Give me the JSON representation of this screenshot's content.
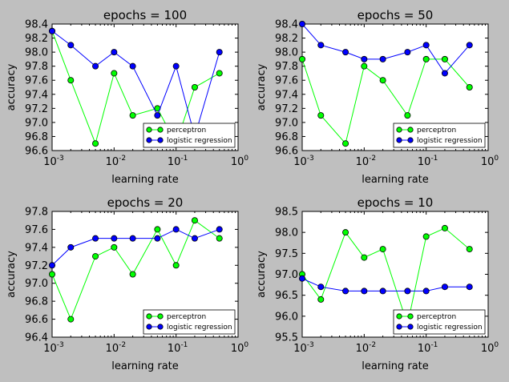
{
  "chart_data": [
    {
      "type": "line",
      "title": "epochs = 100",
      "xlabel": "learning rate",
      "ylabel": "accuracy",
      "xscale": "log",
      "xlim": [
        0.001,
        1
      ],
      "ylim": [
        96.6,
        98.4
      ],
      "x_tick_labels": [
        "10^-3",
        "10^-2",
        "10^-1",
        "10^0"
      ],
      "y_tick_labels": [
        "96.6",
        "96.8",
        "97.0",
        "97.2",
        "97.4",
        "97.6",
        "97.8",
        "98.0",
        "98.2",
        "98.4"
      ],
      "legend": "lower-right",
      "x": [
        0.001,
        0.002,
        0.005,
        0.01,
        0.02,
        0.05,
        0.1,
        0.2,
        0.5
      ],
      "series": [
        {
          "name": "perceptron",
          "color": "#00ff00",
          "values": [
            98.3,
            97.6,
            96.7,
            97.7,
            97.1,
            97.2,
            96.7,
            97.5,
            97.7
          ]
        },
        {
          "name": "logistic regression",
          "color": "#0000ff",
          "values": [
            98.3,
            98.1,
            97.8,
            98.0,
            97.8,
            97.1,
            97.8,
            96.8,
            98.0
          ]
        }
      ]
    },
    {
      "type": "line",
      "title": "epochs = 50",
      "xlabel": "learning rate",
      "ylabel": "accuracy",
      "xscale": "log",
      "xlim": [
        0.001,
        1
      ],
      "ylim": [
        96.6,
        98.4
      ],
      "x_tick_labels": [
        "10^-3",
        "10^-2",
        "10^-1",
        "10^0"
      ],
      "y_tick_labels": [
        "96.6",
        "96.8",
        "97.0",
        "97.2",
        "97.4",
        "97.6",
        "97.8",
        "98.0",
        "98.2",
        "98.4"
      ],
      "legend": "lower-right",
      "x": [
        0.001,
        0.002,
        0.005,
        0.01,
        0.02,
        0.05,
        0.1,
        0.2,
        0.5
      ],
      "series": [
        {
          "name": "perceptron",
          "color": "#00ff00",
          "values": [
            97.9,
            97.1,
            96.7,
            97.8,
            97.6,
            97.1,
            97.9,
            97.9,
            97.5
          ]
        },
        {
          "name": "logistic regression",
          "color": "#0000ff",
          "values": [
            98.4,
            98.1,
            98.0,
            97.9,
            97.9,
            98.0,
            98.1,
            97.7,
            98.1
          ]
        }
      ]
    },
    {
      "type": "line",
      "title": "epochs = 20",
      "xlabel": "learning rate",
      "ylabel": "accuracy",
      "xscale": "log",
      "xlim": [
        0.001,
        1
      ],
      "ylim": [
        96.4,
        97.8
      ],
      "x_tick_labels": [
        "10^-3",
        "10^-2",
        "10^-1",
        "10^0"
      ],
      "y_tick_labels": [
        "96.4",
        "96.6",
        "96.8",
        "97.0",
        "97.2",
        "97.4",
        "97.6",
        "97.8"
      ],
      "legend": "lower-right",
      "x": [
        0.001,
        0.002,
        0.005,
        0.01,
        0.02,
        0.05,
        0.1,
        0.2,
        0.5
      ],
      "series": [
        {
          "name": "perceptron",
          "color": "#00ff00",
          "values": [
            97.1,
            96.6,
            97.3,
            97.4,
            97.1,
            97.6,
            97.2,
            97.7,
            97.5
          ]
        },
        {
          "name": "logistic regression",
          "color": "#0000ff",
          "values": [
            97.2,
            97.4,
            97.5,
            97.5,
            97.5,
            97.5,
            97.6,
            97.5,
            97.6
          ]
        }
      ]
    },
    {
      "type": "line",
      "title": "epochs = 10",
      "xlabel": "learning rate",
      "ylabel": "accuracy",
      "xscale": "log",
      "xlim": [
        0.001,
        1
      ],
      "ylim": [
        95.5,
        98.5
      ],
      "x_tick_labels": [
        "10^-3",
        "10^-2",
        "10^-1",
        "10^0"
      ],
      "y_tick_labels": [
        "95.5",
        "96.0",
        "96.5",
        "97.0",
        "97.5",
        "98.0",
        "98.5"
      ],
      "legend": "lower-right",
      "x": [
        0.001,
        0.002,
        0.005,
        0.01,
        0.02,
        0.05,
        0.1,
        0.2,
        0.5
      ],
      "series": [
        {
          "name": "perceptron",
          "color": "#00ff00",
          "values": [
            97.0,
            96.4,
            98.0,
            97.4,
            97.6,
            95.8,
            97.9,
            98.1,
            97.6
          ]
        },
        {
          "name": "logistic regression",
          "color": "#0000ff",
          "values": [
            96.9,
            96.7,
            96.6,
            96.6,
            96.6,
            96.6,
            96.6,
            96.7,
            96.7
          ]
        }
      ]
    }
  ]
}
